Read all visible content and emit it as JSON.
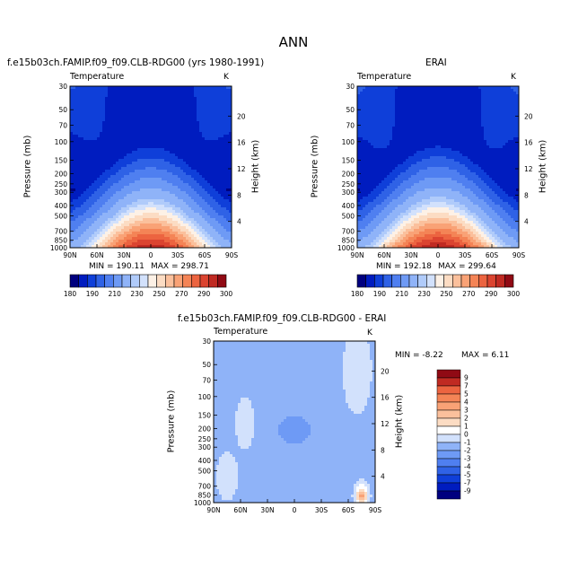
{
  "page_title": "ANN",
  "colors": {
    "blue_scale": [
      "#00007f",
      "#001cbf",
      "#0f3fd9",
      "#2f62e6",
      "#4f7ff0",
      "#6e9af5",
      "#8fb3f8",
      "#b0cbfa",
      "#d2e1fc"
    ],
    "red_scale": [
      "#fdf1e6",
      "#fcdcc3",
      "#fbc09c",
      "#f9a276",
      "#f48456",
      "#ec6440",
      "#db4430",
      "#c02a22",
      "#900a14"
    ],
    "white": "#ffffff"
  },
  "chart_data": [
    {
      "type": "heatmap",
      "title": "f.e15b03ch.FAMIP.f09_f09.CLB-RDG00 (yrs 1980-1991)",
      "variable_label": "Temperature",
      "unit_label": "K",
      "ylabel": "Pressure (mb)",
      "ylabel_right": "Height (km)",
      "x_ticks": [
        "90N",
        "60N",
        "30N",
        "0",
        "30S",
        "60S",
        "90S"
      ],
      "y_ticks": [
        "30",
        "50",
        "70",
        "100",
        "150",
        "200",
        "250",
        "300",
        "400",
        "500",
        "700",
        "850",
        "1000"
      ],
      "y_right_ticks": [
        "20",
        "16",
        "12",
        "8",
        "4"
      ],
      "min_text": "MIN = 190.11",
      "max_text": "MAX = 298.71",
      "min": 190.11,
      "max": 298.71,
      "colorbar_labels": [
        "180",
        "190",
        "210",
        "230",
        "250",
        "270",
        "290",
        "300"
      ]
    },
    {
      "type": "heatmap",
      "title": "ERAI",
      "variable_label": "Temperature",
      "unit_label": "K",
      "ylabel": "Pressure (mb)",
      "ylabel_right": "Height (km)",
      "x_ticks": [
        "90N",
        "60N",
        "30N",
        "0",
        "30S",
        "60S",
        "90S"
      ],
      "y_ticks": [
        "30",
        "50",
        "70",
        "100",
        "150",
        "200",
        "250",
        "300",
        "400",
        "500",
        "700",
        "850",
        "1000"
      ],
      "y_right_ticks": [
        "20",
        "16",
        "12",
        "8",
        "4"
      ],
      "min_text": "MIN = 192.18",
      "max_text": "MAX = 299.64",
      "min": 192.18,
      "max": 299.64,
      "colorbar_labels": [
        "180",
        "190",
        "210",
        "230",
        "250",
        "270",
        "290",
        "300"
      ]
    },
    {
      "type": "heatmap",
      "title": "f.e15b03ch.FAMIP.f09_f09.CLB-RDG00 - ERAI",
      "variable_label": "Temperature",
      "unit_label": "K",
      "ylabel": "Pressure (mb)",
      "ylabel_right": "Height (km)",
      "x_ticks": [
        "90N",
        "60N",
        "30N",
        "0",
        "30S",
        "60S",
        "90S"
      ],
      "y_ticks": [
        "30",
        "50",
        "70",
        "100",
        "150",
        "200",
        "250",
        "300",
        "400",
        "500",
        "700",
        "850",
        "1000"
      ],
      "y_right_ticks": [
        "20",
        "16",
        "12",
        "8",
        "4"
      ],
      "min_text": "MIN = -8.22",
      "max_text": "MAX = 6.11",
      "min": -8.22,
      "max": 6.11,
      "colorbar_labels": [
        "9",
        "7",
        "5",
        "4",
        "3",
        "2",
        "1",
        "0",
        "-1",
        "-2",
        "-3",
        "-4",
        "-5",
        "-7",
        "-9"
      ]
    }
  ]
}
